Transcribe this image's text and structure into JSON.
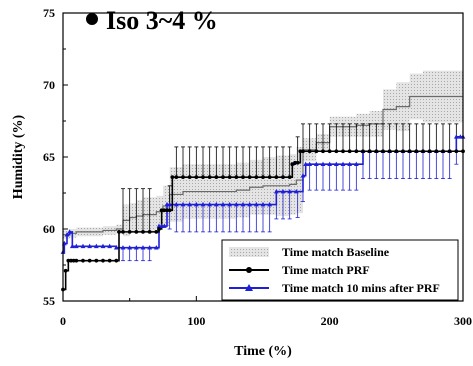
{
  "chart_data": {
    "type": "line",
    "title": "Iso 3~4 %",
    "xlabel": "Time (%)",
    "ylabel": "Humidity (%)",
    "xlim": [
      0,
      300
    ],
    "ylim": [
      55,
      75
    ],
    "xticks": [
      0,
      100,
      200,
      300
    ],
    "yticks": [
      55,
      60,
      65,
      70,
      75
    ],
    "grid": false,
    "legend_position": "bottom-right",
    "series": [
      {
        "name": "Time match Baseline",
        "style": "shaded-band",
        "color": "#9a9a9a",
        "x": [
          0,
          5,
          10,
          15,
          20,
          30,
          40,
          45,
          50,
          55,
          60,
          70,
          75,
          80,
          90,
          100,
          110,
          120,
          130,
          140,
          150,
          160,
          170,
          175,
          180,
          190,
          200,
          210,
          220,
          230,
          240,
          250,
          260,
          270,
          280,
          290,
          300
        ],
        "mean": [
          59.6,
          59.7,
          59.8,
          59.8,
          59.8,
          59.9,
          60.0,
          60.6,
          60.8,
          60.9,
          61.0,
          61.2,
          61.6,
          62.4,
          62.6,
          62.6,
          62.6,
          62.6,
          62.7,
          62.9,
          63.0,
          63.0,
          63.1,
          63.4,
          65.5,
          66.0,
          67.1,
          67.1,
          67.2,
          67.3,
          68.3,
          68.5,
          69.2,
          69.2,
          69.2,
          69.2,
          69.2
        ],
        "upper": [
          59.9,
          60.0,
          60.1,
          60.1,
          60.1,
          60.2,
          60.3,
          61.7,
          61.8,
          62.0,
          62.2,
          62.3,
          63.0,
          64.3,
          64.5,
          64.5,
          64.5,
          64.5,
          64.6,
          64.8,
          65.0,
          65.1,
          65.2,
          65.7,
          66.3,
          66.6,
          67.8,
          67.8,
          68.0,
          68.2,
          69.7,
          70.2,
          70.8,
          71.0,
          71.0,
          71.0,
          71.0
        ],
        "lower": [
          59.3,
          59.4,
          59.5,
          59.5,
          59.5,
          59.6,
          59.7,
          59.5,
          59.8,
          59.8,
          59.8,
          60.1,
          60.2,
          60.5,
          60.7,
          60.7,
          60.7,
          60.7,
          60.8,
          61.0,
          61.0,
          60.9,
          61.0,
          61.1,
          64.7,
          65.4,
          66.4,
          66.4,
          66.4,
          66.4,
          66.9,
          66.8,
          67.6,
          67.4,
          67.4,
          67.4,
          67.4
        ]
      },
      {
        "name": "Time match PRF",
        "style": "line-circle-markers",
        "color": "#000000",
        "x": [
          0,
          2,
          4,
          6,
          8,
          10,
          15,
          20,
          25,
          30,
          35,
          40,
          42,
          45,
          50,
          55,
          60,
          65,
          70,
          72,
          74,
          76,
          78,
          80,
          82,
          85,
          90,
          95,
          100,
          105,
          110,
          115,
          120,
          125,
          130,
          135,
          140,
          145,
          150,
          155,
          160,
          165,
          170,
          172,
          174,
          176,
          178,
          180,
          185,
          190,
          195,
          200,
          205,
          210,
          215,
          220,
          225,
          230,
          235,
          240,
          245,
          250,
          255,
          260,
          265,
          270,
          275,
          280,
          285,
          290,
          295,
          300
        ],
        "y": [
          55.8,
          57.1,
          57.8,
          57.8,
          57.8,
          57.8,
          57.8,
          57.8,
          57.8,
          57.8,
          57.8,
          57.8,
          59.8,
          59.8,
          59.8,
          59.8,
          59.8,
          59.8,
          59.8,
          60.0,
          61.3,
          61.3,
          61.3,
          61.3,
          63.6,
          63.6,
          63.6,
          63.6,
          63.6,
          63.6,
          63.6,
          63.6,
          63.6,
          63.6,
          63.6,
          63.6,
          63.6,
          63.6,
          63.6,
          63.6,
          63.6,
          63.6,
          63.6,
          64.5,
          64.6,
          64.6,
          65.4,
          65.4,
          65.4,
          65.4,
          65.4,
          65.4,
          65.4,
          65.4,
          65.4,
          65.4,
          65.4,
          65.4,
          65.4,
          65.4,
          65.4,
          65.4,
          65.4,
          65.4,
          65.4,
          65.4,
          65.4,
          65.4,
          65.4,
          65.4,
          65.4,
          65.4
        ],
        "error_x": [
          45,
          50,
          55,
          60,
          65,
          80,
          85,
          90,
          95,
          100,
          105,
          110,
          115,
          120,
          125,
          130,
          135,
          140,
          145,
          150,
          155,
          160,
          165,
          170,
          176,
          180,
          185,
          190,
          195,
          200,
          205,
          210,
          215,
          220,
          225,
          230,
          235,
          240,
          245,
          250,
          255,
          260,
          265,
          270,
          275,
          280,
          285,
          290,
          295
        ],
        "error_plus": [
          3.0,
          3.0,
          3.0,
          3.0,
          3.0,
          1.7,
          2.1,
          2.1,
          2.1,
          2.1,
          2.1,
          2.1,
          2.1,
          2.1,
          2.1,
          2.1,
          2.1,
          2.1,
          2.1,
          2.1,
          2.1,
          2.1,
          2.1,
          2.1,
          1.8,
          1.9,
          1.9,
          1.9,
          1.9,
          1.9,
          1.9,
          1.9,
          1.9,
          1.9,
          1.9,
          1.9,
          1.9,
          1.9,
          1.9,
          1.9,
          1.9,
          1.9,
          1.9,
          1.9,
          1.9,
          1.9,
          1.9,
          1.9,
          1.9
        ]
      },
      {
        "name": "Time match 10 mins after PRF",
        "style": "line-triangle-markers",
        "color": "#1f1fd6",
        "x": [
          0,
          1,
          3,
          5,
          7,
          10,
          15,
          20,
          25,
          30,
          35,
          40,
          45,
          50,
          55,
          60,
          65,
          70,
          72,
          74,
          76,
          78,
          80,
          85,
          90,
          95,
          100,
          105,
          110,
          115,
          120,
          125,
          130,
          135,
          140,
          145,
          150,
          155,
          160,
          165,
          170,
          175,
          180,
          182,
          185,
          190,
          195,
          200,
          205,
          210,
          215,
          220,
          225,
          230,
          235,
          240,
          245,
          250,
          255,
          260,
          265,
          270,
          275,
          280,
          285,
          290,
          295,
          298,
          300
        ],
        "y": [
          58.4,
          59.0,
          59.6,
          59.8,
          58.8,
          58.8,
          58.8,
          58.8,
          58.8,
          58.8,
          58.8,
          58.7,
          58.7,
          58.7,
          58.7,
          58.7,
          58.7,
          58.7,
          60.2,
          60.2,
          60.2,
          61.7,
          61.7,
          61.7,
          61.7,
          61.7,
          61.7,
          61.7,
          61.7,
          61.7,
          61.7,
          61.7,
          61.7,
          61.7,
          61.7,
          61.7,
          61.7,
          61.7,
          62.6,
          62.6,
          62.6,
          62.6,
          63.7,
          64.5,
          64.5,
          64.5,
          64.5,
          64.5,
          64.5,
          64.5,
          64.5,
          64.5,
          65.4,
          65.4,
          65.4,
          65.4,
          65.4,
          65.4,
          65.4,
          65.4,
          65.4,
          65.4,
          65.4,
          65.4,
          65.4,
          65.4,
          66.4,
          66.4,
          66.4
        ],
        "error_x": [
          45,
          50,
          55,
          60,
          65,
          80,
          85,
          90,
          95,
          100,
          105,
          110,
          115,
          120,
          125,
          130,
          135,
          140,
          145,
          150,
          155,
          160,
          165,
          170,
          176,
          180,
          185,
          190,
          195,
          200,
          205,
          210,
          215,
          220,
          225,
          230,
          235,
          240,
          245,
          250,
          255,
          260,
          265,
          270,
          275,
          280,
          285,
          290,
          295
        ],
        "error_minus": [
          0.9,
          0.9,
          0.9,
          0.9,
          0.9,
          1.7,
          1.9,
          1.9,
          1.9,
          1.9,
          1.9,
          1.9,
          1.9,
          1.9,
          1.9,
          1.9,
          1.9,
          1.9,
          1.9,
          1.9,
          1.9,
          1.9,
          1.9,
          1.9,
          1.8,
          1.8,
          1.8,
          1.8,
          1.8,
          1.8,
          1.8,
          1.8,
          1.8,
          1.8,
          1.9,
          1.9,
          1.9,
          1.9,
          1.9,
          1.9,
          1.9,
          1.9,
          1.9,
          1.9,
          1.9,
          1.9,
          1.9,
          1.9,
          1.9
        ]
      }
    ]
  }
}
